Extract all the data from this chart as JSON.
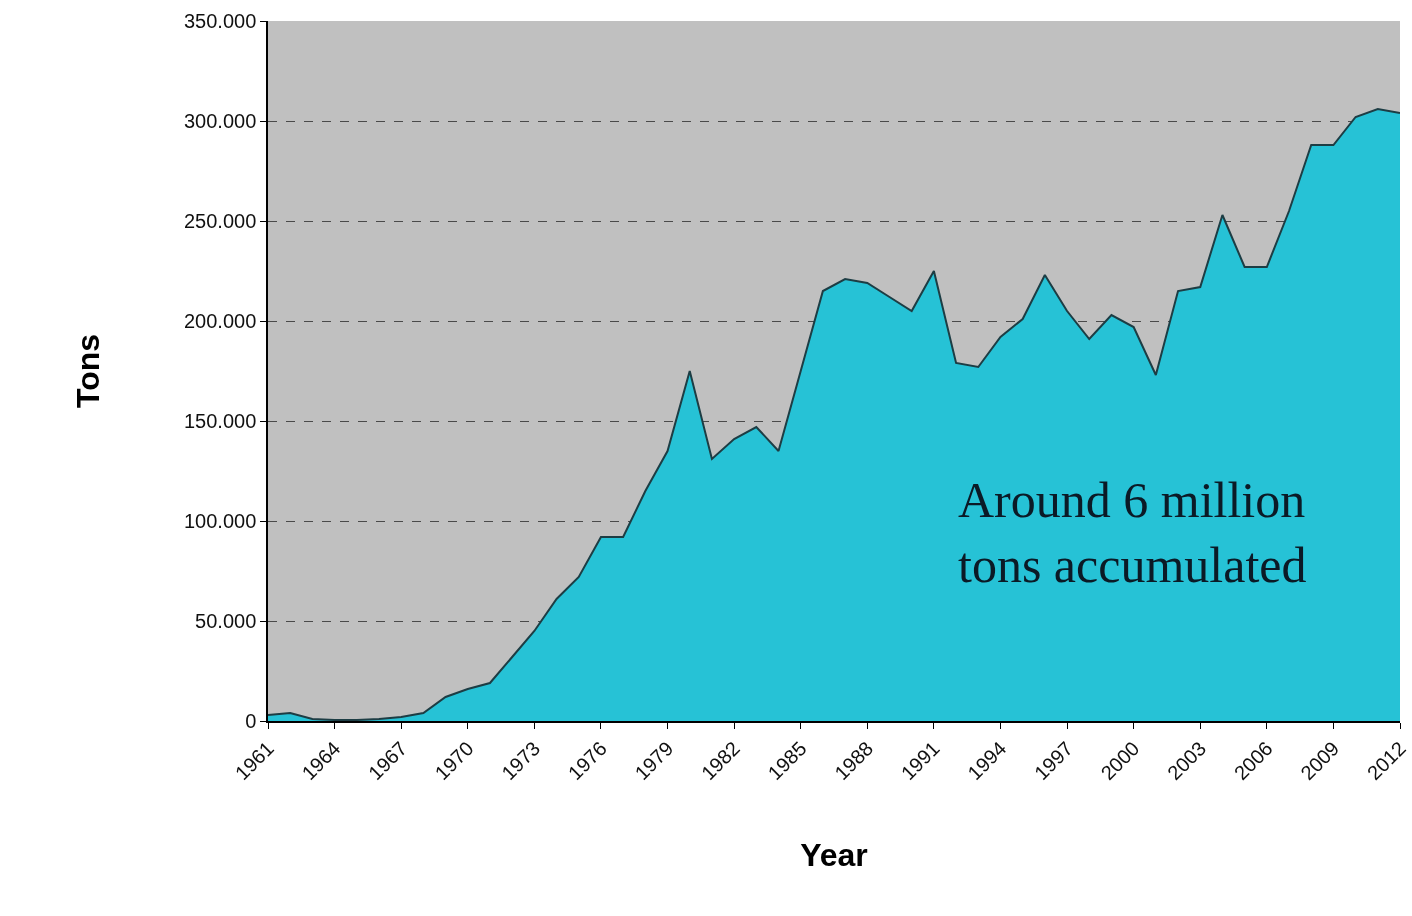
{
  "chart_data": {
    "type": "area",
    "xlabel": "Year",
    "ylabel": "Tons",
    "x": [
      1961,
      1962,
      1963,
      1964,
      1965,
      1966,
      1967,
      1968,
      1969,
      1970,
      1971,
      1972,
      1973,
      1974,
      1975,
      1976,
      1977,
      1978,
      1979,
      1980,
      1981,
      1982,
      1983,
      1984,
      1985,
      1986,
      1987,
      1988,
      1989,
      1990,
      1991,
      1992,
      1993,
      1994,
      1995,
      1996,
      1997,
      1998,
      1999,
      2000,
      2001,
      2002,
      2003,
      2004,
      2005,
      2006,
      2007,
      2008,
      2009,
      2010,
      2011,
      2012
    ],
    "series": [
      {
        "color": "#26c2d6",
        "values": [
          3000,
          4000,
          1000,
          500,
          500,
          1000,
          2000,
          4000,
          12000,
          16000,
          19000,
          32000,
          45000,
          61000,
          72000,
          92000,
          92000,
          115000,
          135000,
          175000,
          131000,
          141000,
          147000,
          135000,
          175000,
          215000,
          221000,
          219000,
          212000,
          205000,
          225000,
          179000,
          177000,
          192000,
          201000,
          223000,
          205000,
          191000,
          203000,
          197000,
          173000,
          215000,
          217000,
          253000,
          227000,
          227000,
          255000,
          288000,
          288000,
          302000,
          306000,
          304000
        ]
      }
    ],
    "xlim": [
      1961,
      2012
    ],
    "xticks": [
      1961,
      1964,
      1967,
      1970,
      1973,
      1976,
      1979,
      1982,
      1985,
      1988,
      1991,
      1994,
      1997,
      2000,
      2003,
      2006,
      2009,
      2012
    ],
    "ylim": [
      0,
      350000
    ],
    "yticks": [
      0,
      {
        "value": 50000,
        "label": "50.000"
      },
      {
        "value": 100000,
        "label": "100.000"
      },
      {
        "value": 150000,
        "label": "150.000"
      },
      {
        "value": 200000,
        "label": "200.000"
      },
      {
        "value": 250000,
        "label": "250.000"
      },
      {
        "value": 300000,
        "label": "300.000"
      },
      {
        "value": 350000,
        "label": "350.000"
      }
    ],
    "grid": "y",
    "marker": "none",
    "line_style": "solid",
    "annotations": [
      "Around 6 million\ntons accumulated"
    ]
  }
}
